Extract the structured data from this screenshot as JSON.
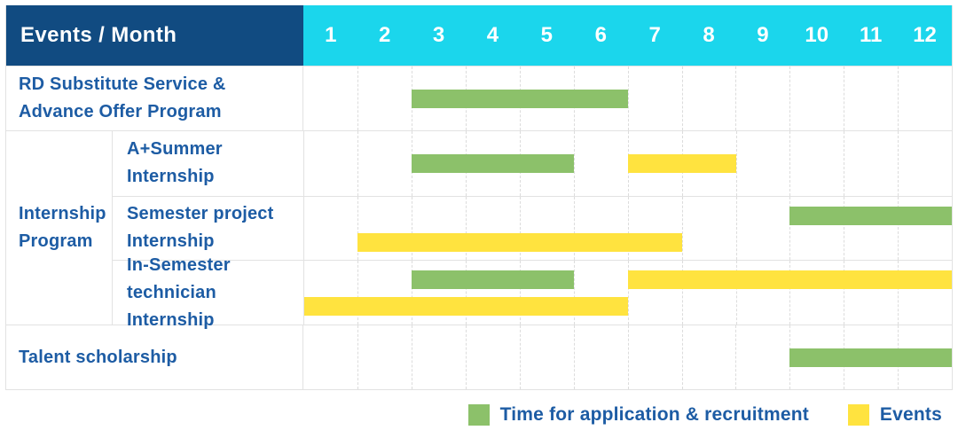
{
  "header": {
    "title": "Events / Month",
    "months": [
      "1",
      "2",
      "3",
      "4",
      "5",
      "6",
      "7",
      "8",
      "9",
      "10",
      "11",
      "12"
    ]
  },
  "table": {
    "rows": {
      "rd": {
        "lines": [
          "RD Substitute Service &",
          "Advance Offer Program"
        ]
      },
      "group": {
        "lines": [
          "Internship",
          "Program"
        ]
      },
      "summer": {
        "lines": [
          "A+Summer",
          "Internship"
        ]
      },
      "semester": {
        "lines": [
          "Semester project",
          "Internship"
        ]
      },
      "technician": {
        "lines": [
          "In-Semester",
          "technician Internship"
        ]
      },
      "talent": {
        "lines": [
          "Talent scholarship"
        ]
      }
    }
  },
  "legend": {
    "items": [
      {
        "key": "green",
        "label": "Time for application & recruitment"
      },
      {
        "key": "yellow",
        "label": "Events"
      }
    ],
    "position": "bottom-right"
  },
  "colors": {
    "header_bg": "#114B81",
    "months_bg": "#1BD6EC",
    "header_text": "#FFFFFF",
    "green": "#8CC16A",
    "yellow": "#FFE33F",
    "label_text": "#1D5CA4",
    "grid_line": "#E2E2E2",
    "grid_dash": "#DCDCDC"
  },
  "chart_data": {
    "type": "bar",
    "subtype": "gantt",
    "title": "Events / Month",
    "x_axis": {
      "label": "Month",
      "ticks": [
        1,
        2,
        3,
        4,
        5,
        6,
        7,
        8,
        9,
        10,
        11,
        12
      ],
      "range": [
        1,
        12
      ]
    },
    "grid": "dashed-vertical-month-lines",
    "legend_position": "bottom-right",
    "series_legend": {
      "green": "Time for application & recruitment",
      "yellow": "Events"
    },
    "rows": [
      {
        "group": null,
        "label": "RD Substitute Service & Advance Offer Program",
        "bars": [
          {
            "series": "Time for application & recruitment",
            "series_key": "green",
            "start_month": 3,
            "end_month": 6,
            "lane": "center"
          }
        ]
      },
      {
        "group": "Internship Program",
        "label": "A+Summer Internship",
        "bars": [
          {
            "series": "Time for application & recruitment",
            "series_key": "green",
            "start_month": 3,
            "end_month": 5,
            "lane": "center"
          },
          {
            "series": "Events",
            "series_key": "yellow",
            "start_month": 7,
            "end_month": 8,
            "lane": "center"
          }
        ]
      },
      {
        "group": "Internship Program",
        "label": "Semester project Internship",
        "bars": [
          {
            "series": "Time for application & recruitment",
            "series_key": "green",
            "start_month": 10,
            "end_month": 12,
            "lane": "upper"
          },
          {
            "series": "Events",
            "series_key": "yellow",
            "start_month": 2,
            "end_month": 7,
            "lane": "lower"
          }
        ]
      },
      {
        "group": "Internship Program",
        "label": "In-Semester technician Internship",
        "bars": [
          {
            "series": "Time for application & recruitment",
            "series_key": "green",
            "start_month": 3,
            "end_month": 5,
            "lane": "upper"
          },
          {
            "series": "Events",
            "series_key": "yellow",
            "start_month": 7,
            "end_month": 12,
            "lane": "upper"
          },
          {
            "series": "Events",
            "series_key": "yellow",
            "start_month": 1,
            "end_month": 6,
            "lane": "lower"
          }
        ]
      },
      {
        "group": null,
        "label": "Talent scholarship",
        "bars": [
          {
            "series": "Time for application & recruitment",
            "series_key": "green",
            "start_month": 10,
            "end_month": 12,
            "lane": "center"
          }
        ]
      }
    ]
  }
}
